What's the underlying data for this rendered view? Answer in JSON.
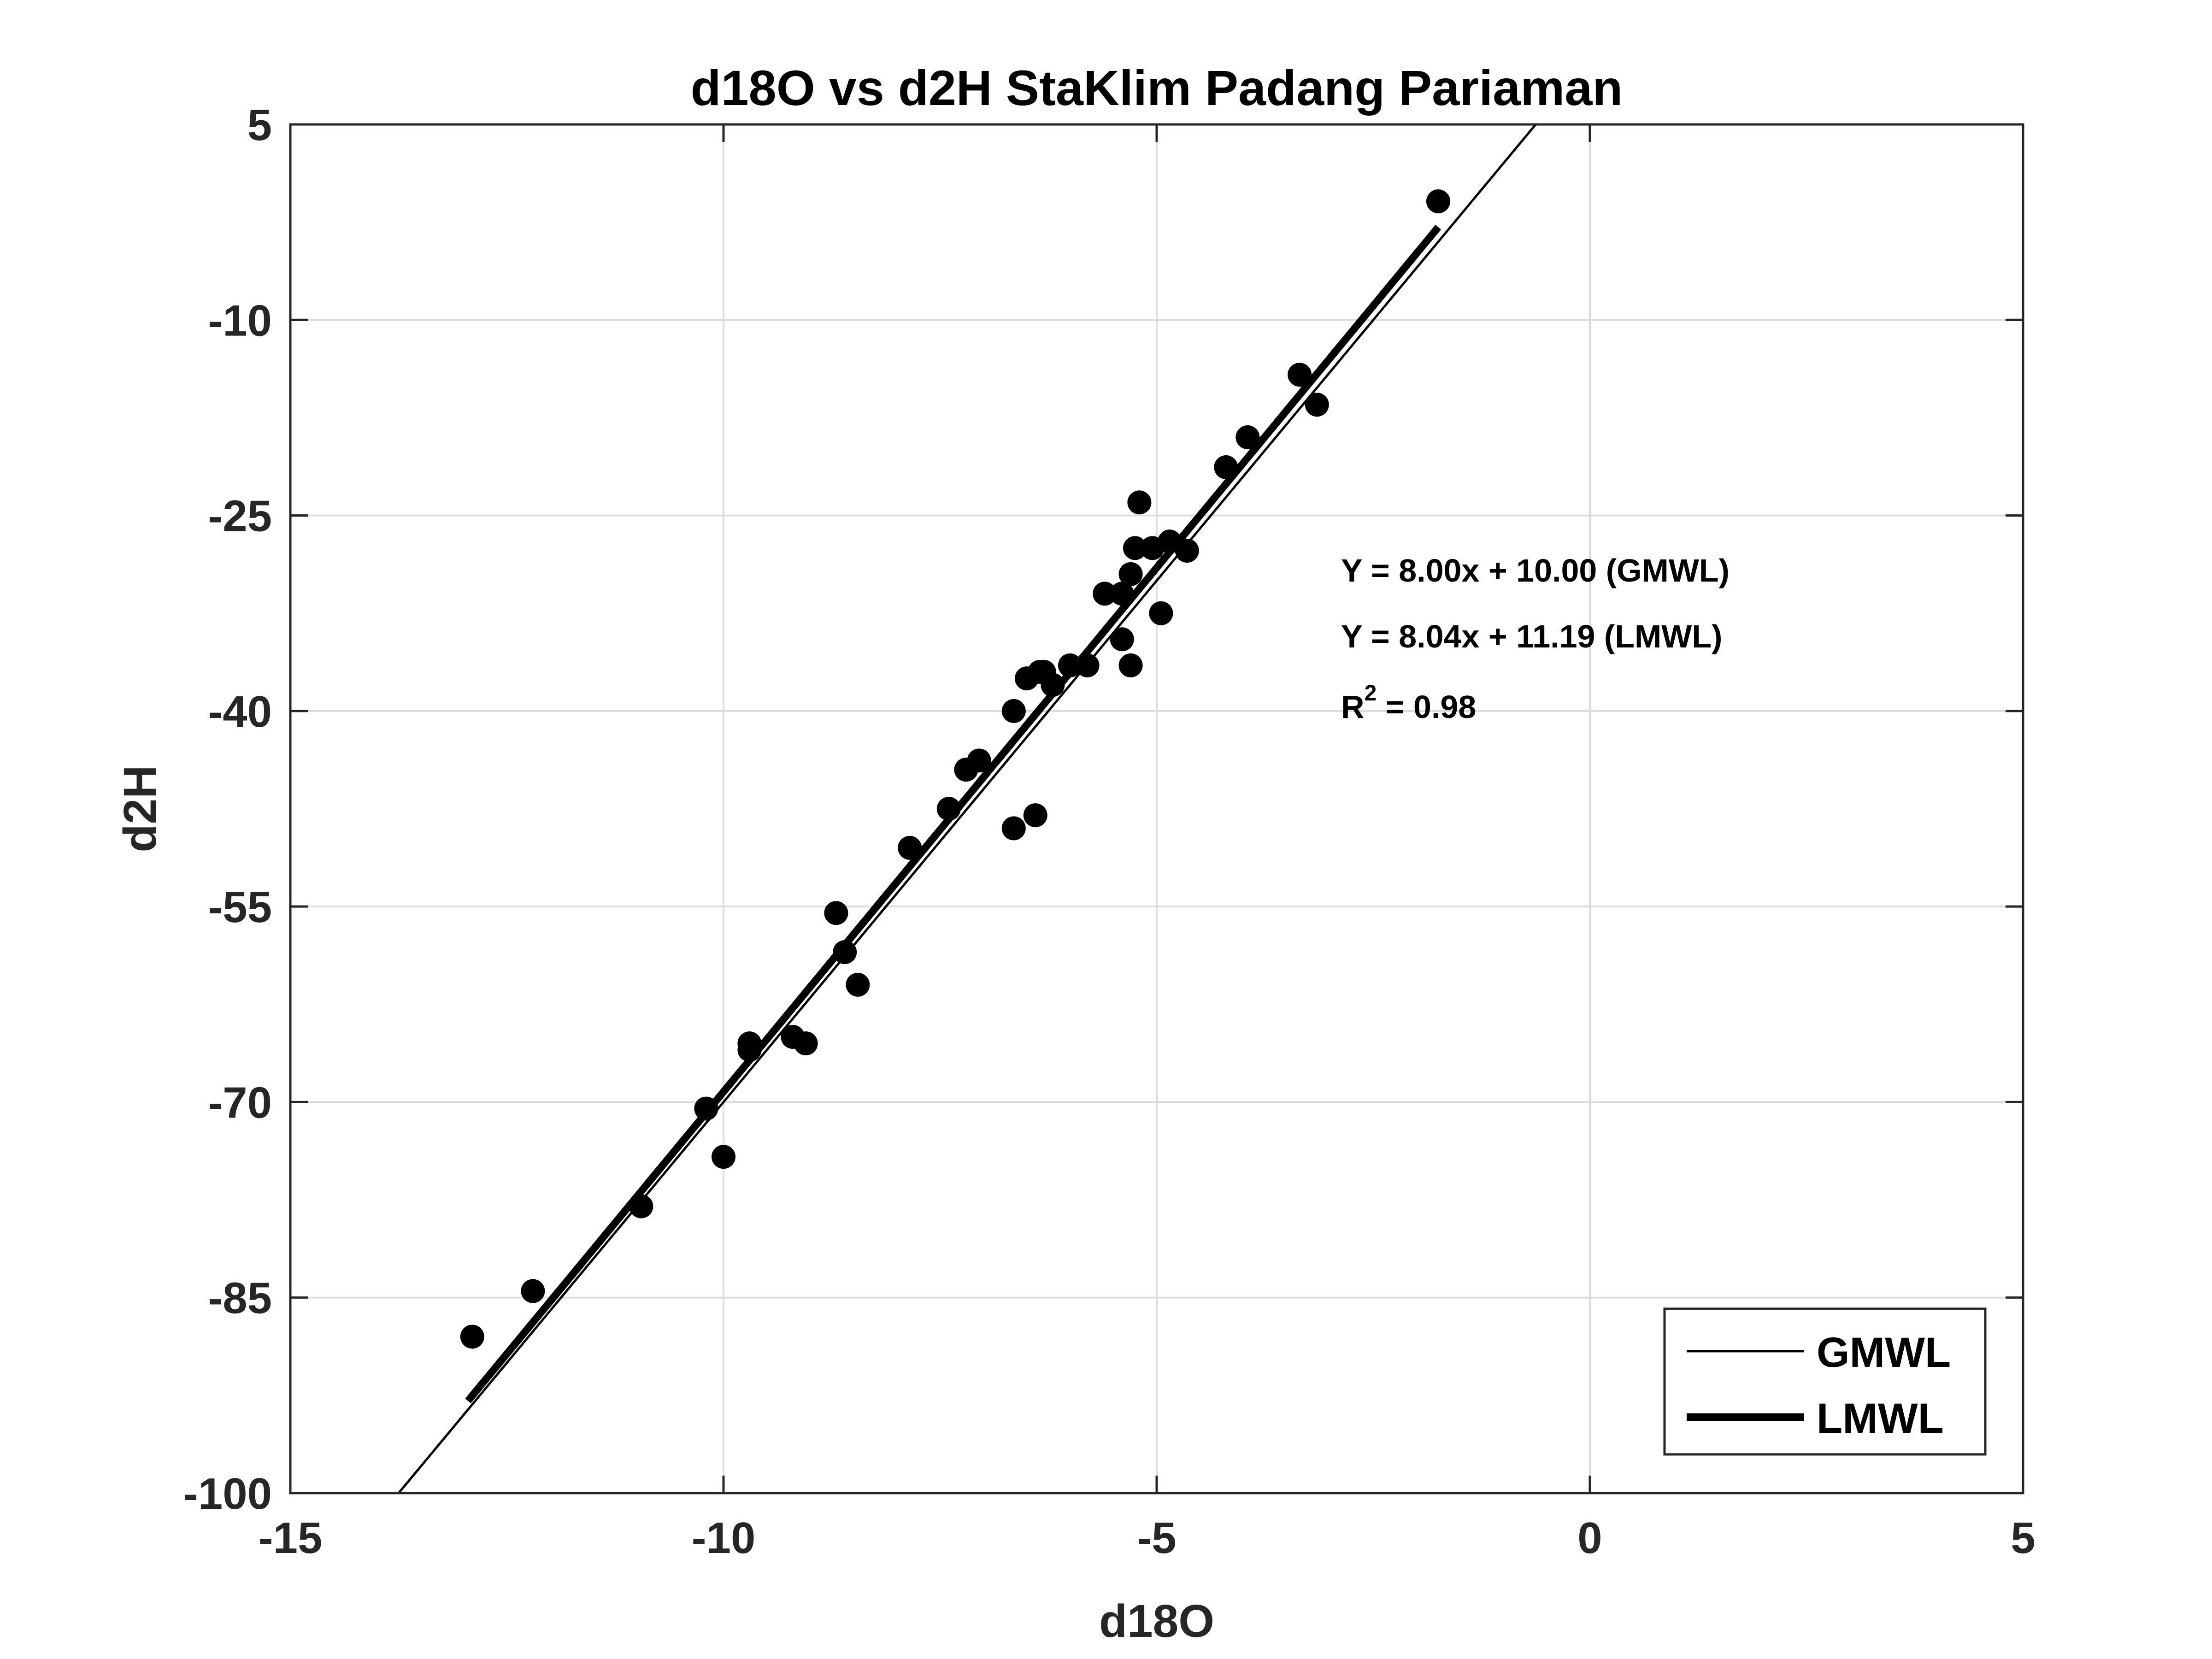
{
  "colors": {
    "line": "#000000",
    "grid": "#dcdcdc",
    "axis": "#262626",
    "background": "#ffffff"
  },
  "chart_data": {
    "type": "scatter",
    "title": "d18O vs d2H StaKlim Padang Pariaman",
    "xlabel": "d18O",
    "ylabel": "d2H",
    "xlim": [
      -15,
      5
    ],
    "ylim": [
      -100,
      5
    ],
    "xticks": [
      -15,
      -10,
      -5,
      0,
      5
    ],
    "yticks": [
      5,
      -10,
      -25,
      -40,
      -55,
      -70,
      -85,
      -100
    ],
    "xtick_labels": [
      "-15",
      "-10",
      "-5",
      "0",
      "5"
    ],
    "ytick_labels": [
      "5",
      "-10",
      "-25",
      "-40",
      "-55",
      "-70",
      "-85",
      "-100"
    ],
    "grid": true,
    "points": {
      "x": [
        -12.9,
        -12.2,
        -10.95,
        -10.2,
        -10.0,
        -9.7,
        -9.7,
        -9.2,
        -9.05,
        -8.7,
        -8.6,
        -8.45,
        -7.85,
        -7.4,
        -7.2,
        -7.05,
        -6.65,
        -6.65,
        -6.5,
        -6.4,
        -6.35,
        -6.3,
        -6.2,
        -6.0,
        -5.8,
        -5.6,
        -5.4,
        -5.4,
        -5.3,
        -5.3,
        -5.25,
        -5.2,
        -5.05,
        -4.95,
        -4.85,
        -4.65,
        -4.2,
        -3.95,
        -3.35,
        -3.15,
        -1.75
      ],
      "y": [
        -88.0,
        -84.5,
        -78.0,
        -70.5,
        -74.2,
        -65.5,
        -66.0,
        -65.0,
        -65.5,
        -55.5,
        -58.5,
        -61.0,
        -50.5,
        -47.5,
        -44.5,
        -43.8,
        -49.0,
        -40.0,
        -37.5,
        -48.0,
        -37.0,
        -37.0,
        -38.0,
        -36.5,
        -36.5,
        -31.0,
        -31.0,
        -34.5,
        -29.5,
        -36.5,
        -27.5,
        -24.0,
        -27.5,
        -32.5,
        -27.0,
        -27.7,
        -21.3,
        -19.0,
        -14.2,
        -16.5,
        -0.9
      ]
    },
    "lines": [
      {
        "name": "GMWL",
        "slope": 8.0,
        "intercept": 10.0,
        "x_range": [
          -13.75,
          -0.62
        ],
        "width": "thin"
      },
      {
        "name": "LMWL",
        "slope": 8.04,
        "intercept": 11.19,
        "x_range": [
          -12.95,
          -1.75
        ],
        "width": "thick"
      }
    ],
    "annotations": [
      "Y = 8.00x + 10.00 (GMWL)",
      "Y = 8.04x + 11.19 (LMWL)"
    ],
    "r2": {
      "base": "R",
      "sup": "2",
      "rest": " = 0.98"
    },
    "legend": {
      "position": "bottom-right",
      "entries": [
        "GMWL",
        "LMWL"
      ]
    }
  }
}
